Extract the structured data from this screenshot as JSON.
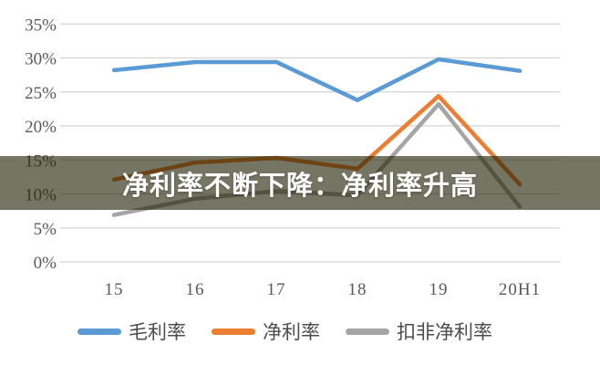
{
  "banner": {
    "text_color": "#ffffff",
    "bg_color": "rgba(30, 33, 2, 0.62)"
  },
  "chart_data": {
    "type": "line",
    "categories": [
      "15",
      "16",
      "17",
      "18",
      "19",
      "20H1"
    ],
    "series": [
      {
        "name": "毛利率",
        "color": "#5B9BD5",
        "values": [
          28.2,
          29.4,
          29.4,
          23.8,
          29.8,
          28.1
        ]
      },
      {
        "name": "净利率",
        "color": "#ED7D31",
        "values": [
          12.1,
          14.6,
          15.3,
          13.7,
          24.4,
          11.4
        ]
      },
      {
        "name": "扣非净利率",
        "color": "#A5A5A5",
        "values": [
          6.9,
          9.3,
          10.4,
          9.8,
          23.2,
          8.1
        ]
      }
    ],
    "annotation": "净利率不断下降：净利率升高",
    "title": "",
    "xlabel": "",
    "ylabel": "",
    "ylim": [
      0,
      35
    ],
    "y_tick_step": 5,
    "y_tick_labels": [
      "0%",
      "5%",
      "10%",
      "15%",
      "20%",
      "25%",
      "30%",
      "35%"
    ],
    "grid": true,
    "legend_position": "bottom",
    "tick_text_color": "#595959",
    "grid_color": "#D4D4D4"
  }
}
